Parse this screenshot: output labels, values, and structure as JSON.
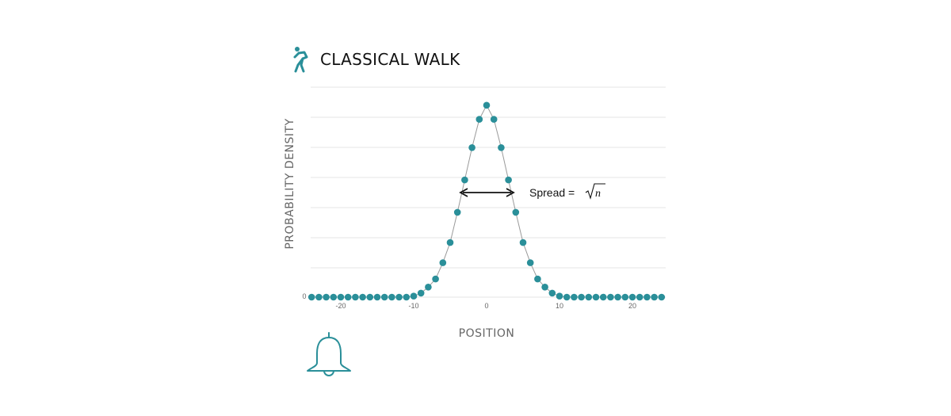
{
  "header": {
    "title": "CLASSICAL WALK",
    "icon": "walking-person-icon"
  },
  "footer": {
    "icon": "bell-icon"
  },
  "colors": {
    "accent": "#2a8f99",
    "line": "#9a9a9a",
    "grid": "#e4e4e4",
    "axis_text": "#666666"
  },
  "annotation": {
    "text": "Spread = ",
    "math": "n"
  },
  "chart_data": {
    "type": "scatter",
    "title": "CLASSICAL WALK",
    "xlabel": "POSITION",
    "ylabel": "PROBABILITY DENSITY",
    "xlim": [
      -25,
      25
    ],
    "ylim": [
      0,
      1
    ],
    "xticks": [
      -20,
      -10,
      0,
      10,
      20
    ],
    "xtick_labels": [
      "-20",
      "-10",
      "0",
      "10",
      "20"
    ],
    "ytick_labels": [
      "0"
    ],
    "grid": true,
    "connected_line": true,
    "series": [
      {
        "x": [
          -24,
          -23,
          -22,
          -21,
          -20,
          -19,
          -18,
          -17,
          -16,
          -15,
          -14,
          -13,
          -12,
          -11,
          -10,
          -9,
          -8,
          -7,
          -6,
          -5,
          -4,
          -3,
          -2,
          -1,
          0,
          1,
          2,
          3,
          4,
          5,
          6,
          7,
          8,
          9,
          10,
          11,
          12,
          13,
          14,
          15,
          16,
          17,
          18,
          19,
          20,
          21,
          22,
          23,
          24
        ],
        "values": [
          0,
          0,
          0,
          0,
          0,
          0,
          0,
          0,
          0,
          0,
          0,
          0,
          0,
          0,
          0.005,
          0.02,
          0.05,
          0.09,
          0.17,
          0.27,
          0.42,
          0.58,
          0.74,
          0.88,
          0.95,
          0.88,
          0.74,
          0.58,
          0.42,
          0.27,
          0.17,
          0.09,
          0.05,
          0.02,
          0.005,
          0,
          0,
          0,
          0,
          0,
          0,
          0,
          0,
          0,
          0,
          0,
          0,
          0,
          0
        ]
      }
    ]
  }
}
